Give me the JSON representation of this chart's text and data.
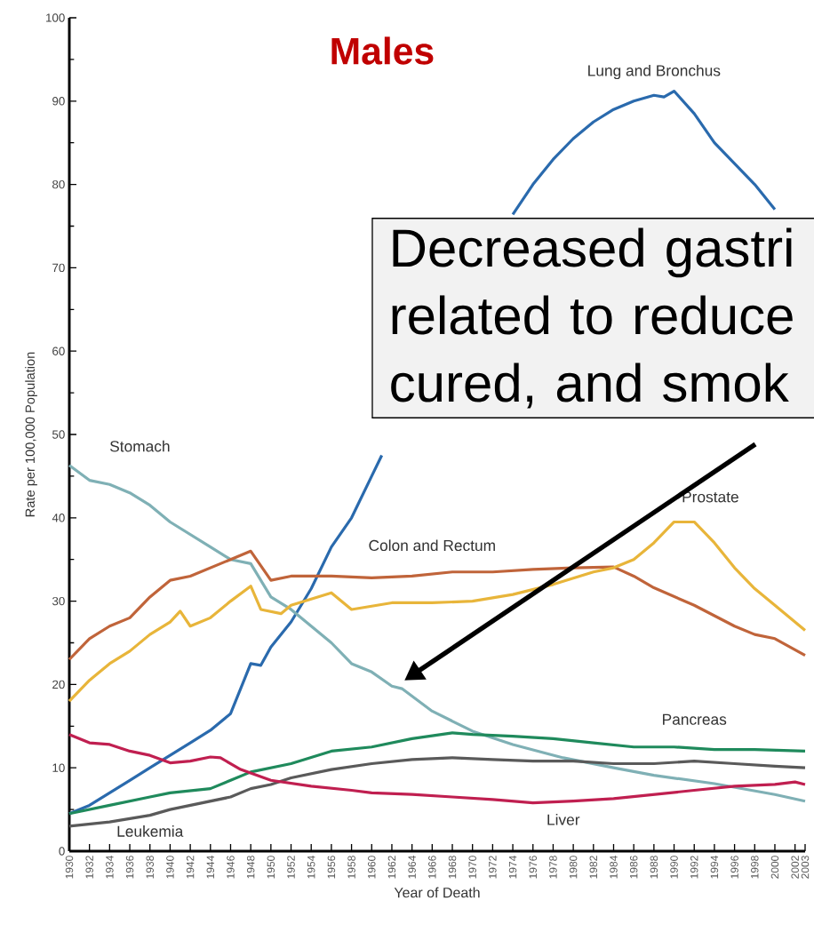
{
  "chart_data": {
    "type": "line",
    "title": "Males",
    "xlabel": "Year of Death",
    "ylabel": "Rate per 100,000 Population",
    "xlim": [
      1930,
      2003
    ],
    "ylim": [
      0,
      100
    ],
    "xticks": [
      1930,
      1932,
      1934,
      1936,
      1938,
      1940,
      1942,
      1944,
      1946,
      1948,
      1950,
      1952,
      1954,
      1956,
      1958,
      1960,
      1962,
      1964,
      1966,
      1968,
      1970,
      1972,
      1974,
      1976,
      1978,
      1980,
      1982,
      1984,
      1986,
      1988,
      1990,
      1992,
      1994,
      1996,
      1998,
      2000,
      2002,
      2003
    ],
    "yticks": [
      0,
      10,
      20,
      30,
      40,
      50,
      60,
      70,
      80,
      90,
      100
    ],
    "grid": false,
    "marker": "none",
    "line_style": "solid",
    "annotations": [
      "Decreased gastri related to reduce cured, and smok"
    ],
    "series": [
      {
        "name": "Lung and Bronchus",
        "color": "#2a6aad",
        "x": [
          1930,
          1932,
          1934,
          1936,
          1938,
          1940,
          1942,
          1944,
          1946,
          1948,
          1949,
          1950,
          1952,
          1954,
          1956,
          1958,
          1960,
          1961,
          1966,
          1974,
          1976,
          1978,
          1980,
          1982,
          1984,
          1986,
          1988,
          1989,
          1990,
          1992,
          1994,
          1996,
          1998,
          2000
        ],
        "values": [
          4.5,
          5.5,
          7,
          8.5,
          10,
          11.5,
          13,
          14.5,
          16.5,
          22.5,
          22.3,
          24.5,
          27.5,
          31.5,
          36.5,
          40,
          45,
          47.5,
          null,
          76.4,
          80,
          83,
          85.5,
          87.5,
          89,
          90,
          90.7,
          90.5,
          91.2,
          88.5,
          85,
          82.5,
          80,
          77
        ]
      },
      {
        "name": "Stomach",
        "color": "#7fb0b5",
        "x": [
          1930,
          1932,
          1934,
          1936,
          1938,
          1940,
          1942,
          1944,
          1946,
          1948,
          1950,
          1952,
          1954,
          1956,
          1958,
          1960,
          1962,
          1963,
          1966,
          1970,
          1974,
          1979,
          1984,
          1988,
          1994,
          2000,
          2003
        ],
        "values": [
          46.3,
          44.5,
          44,
          43,
          41.5,
          39.5,
          38,
          36.5,
          35,
          34.5,
          30.5,
          29,
          27,
          25,
          22.5,
          21.5,
          19.8,
          19.5,
          16.8,
          14.4,
          12.8,
          11.2,
          10,
          9.1,
          8.1,
          6.8,
          6
        ]
      },
      {
        "name": "Colon and Rectum",
        "color": "#c0643a",
        "x": [
          1930,
          1932,
          1934,
          1936,
          1938,
          1940,
          1942,
          1944,
          1946,
          1948,
          1950,
          1952,
          1956,
          1960,
          1964,
          1968,
          1972,
          1976,
          1980,
          1984,
          1986,
          1988,
          1992,
          1996,
          1998,
          2000,
          2003
        ],
        "values": [
          23,
          25.5,
          27,
          28,
          30.5,
          32.5,
          33,
          34,
          35,
          36,
          32.5,
          33,
          33,
          32.8,
          33,
          33.5,
          33.5,
          33.8,
          34,
          34.1,
          33,
          31.6,
          29.5,
          27,
          26,
          25.5,
          23.5
        ]
      },
      {
        "name": "Prostate",
        "color": "#e8b53a",
        "x": [
          1930,
          1932,
          1934,
          1936,
          1938,
          1940,
          1941,
          1942,
          1944,
          1946,
          1948,
          1949,
          1951,
          1952,
          1956,
          1958,
          1962,
          1966,
          1970,
          1974,
          1978,
          1982,
          1984,
          1986,
          1988,
          1990,
          1992,
          1994,
          1996,
          1998,
          2000,
          2003
        ],
        "values": [
          18,
          20.5,
          22.5,
          24,
          26,
          27.5,
          28.8,
          27,
          28,
          30,
          31.8,
          29,
          28.5,
          29.5,
          31,
          29,
          29.8,
          29.8,
          30,
          30.8,
          32,
          33.5,
          34,
          35,
          37,
          39.5,
          39.5,
          37,
          34,
          31.5,
          29.5,
          26.5
        ]
      },
      {
        "name": "Pancreas",
        "color": "#1f8a5c",
        "x": [
          1930,
          1934,
          1938,
          1940,
          1944,
          1946,
          1948,
          1952,
          1956,
          1960,
          1964,
          1968,
          1970,
          1974,
          1978,
          1982,
          1986,
          1990,
          1994,
          1998,
          2003
        ],
        "values": [
          4.5,
          5.5,
          6.5,
          7,
          7.5,
          8.5,
          9.5,
          10.5,
          12,
          12.5,
          13.5,
          14.2,
          14,
          13.8,
          13.5,
          13,
          12.5,
          12.5,
          12.2,
          12.2,
          12
        ]
      },
      {
        "name": "Leukemia",
        "color": "#5a5a5a",
        "x": [
          1930,
          1934,
          1938,
          1940,
          1944,
          1946,
          1948,
          1950,
          1952,
          1956,
          1960,
          1964,
          1968,
          1972,
          1976,
          1980,
          1984,
          1988,
          1992,
          1996,
          2000,
          2003
        ],
        "values": [
          3,
          3.5,
          4.3,
          5,
          6,
          6.5,
          7.5,
          8,
          8.8,
          9.8,
          10.5,
          11,
          11.2,
          11,
          10.8,
          10.8,
          10.5,
          10.5,
          10.8,
          10.5,
          10.2,
          10
        ]
      },
      {
        "name": "Liver",
        "color": "#c01f50",
        "x": [
          1930,
          1932,
          1934,
          1936,
          1938,
          1940,
          1942,
          1944,
          1945,
          1947,
          1950,
          1954,
          1958,
          1960,
          1964,
          1968,
          1972,
          1976,
          1980,
          1984,
          1988,
          1992,
          1996,
          2000,
          2002,
          2003
        ],
        "values": [
          14,
          13,
          12.8,
          12,
          11.5,
          10.6,
          10.8,
          11.3,
          11.2,
          9.8,
          8.5,
          7.8,
          7.3,
          7,
          6.8,
          6.5,
          6.2,
          5.8,
          6,
          6.3,
          6.8,
          7.3,
          7.8,
          8,
          8.3,
          8
        ]
      }
    ]
  }
}
